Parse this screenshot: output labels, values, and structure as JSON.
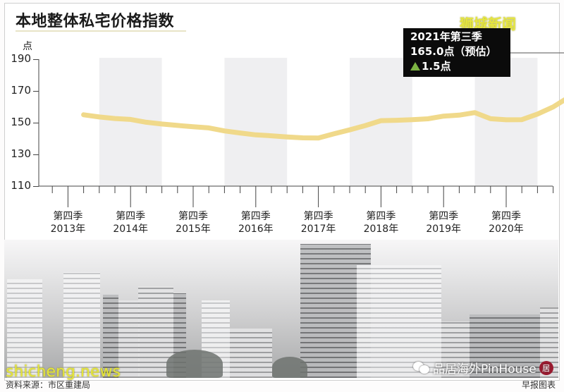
{
  "header": {
    "title": "本地整体私宅价格指数",
    "watermark": "狮城新闻"
  },
  "callout": {
    "line1": "2021年第三季",
    "line2": "165.0点（预估）",
    "change_icon": "up-triangle-icon",
    "change": "1.5点",
    "change_color": "#7cb342"
  },
  "footer": {
    "source": "资料来源：市区重建局",
    "credit": "早报图表",
    "watermark_left": "shicheng.news",
    "watermark_right": "品居海外PinHouse"
  },
  "colors": {
    "line": "#f0d98a",
    "band": "#efeff1",
    "axis": "#444444",
    "callout_bg": "#0b0b0b"
  },
  "chart_data": {
    "type": "line",
    "title": "本地整体私宅价格指数",
    "ylabel": "点",
    "xlabel": "",
    "ylim": [
      110,
      190
    ],
    "yticks": [
      110,
      130,
      150,
      170,
      190
    ],
    "grid": false,
    "legend": null,
    "x_tick_labels": [
      {
        "line1": "第四季",
        "line2": "2013年"
      },
      {
        "line1": "第四季",
        "line2": "2014年"
      },
      {
        "line1": "第四季",
        "line2": "2015年"
      },
      {
        "line1": "第四季",
        "line2": "2016年"
      },
      {
        "line1": "第四季",
        "line2": "2017年"
      },
      {
        "line1": "第四季",
        "line2": "2018年"
      },
      {
        "line1": "第四季",
        "line2": "2019年"
      },
      {
        "line1": "第四季",
        "line2": "2020年"
      }
    ],
    "shaded_bands": [
      [
        "2013Q4",
        "2014Q4"
      ],
      [
        "2015Q4",
        "2016Q4"
      ],
      [
        "2017Q4",
        "2018Q4"
      ],
      [
        "2019Q4",
        "2020Q4"
      ]
    ],
    "x": [
      "2013Q3",
      "2013Q4",
      "2014Q1",
      "2014Q2",
      "2014Q3",
      "2014Q4",
      "2015Q1",
      "2015Q2",
      "2015Q3",
      "2015Q4",
      "2016Q1",
      "2016Q2",
      "2016Q3",
      "2016Q4",
      "2017Q1",
      "2017Q2",
      "2017Q3",
      "2017Q4",
      "2018Q1",
      "2018Q2",
      "2018Q3",
      "2018Q4",
      "2019Q1",
      "2019Q2",
      "2019Q3",
      "2019Q4",
      "2020Q1",
      "2020Q2",
      "2020Q3",
      "2020Q4",
      "2021Q1",
      "2021Q2",
      "2021Q3"
    ],
    "series": [
      {
        "name": "私宅价格指数",
        "values": [
          155.0,
          153.5,
          152.4,
          151.7,
          149.8,
          148.6,
          147.6,
          146.7,
          145.8,
          143.8,
          142.4,
          141.1,
          140.4,
          139.6,
          138.9,
          138.7,
          141.2,
          143.6,
          146.2,
          149.2,
          149.3,
          149.6,
          150.0,
          151.6,
          152.1,
          153.6,
          149.6,
          148.8,
          148.8,
          152.2,
          156.6,
          162.6,
          165.0
        ]
      }
    ],
    "annotations": [
      {
        "x": "2021Q3",
        "text": "2021年第三季 165.0点（预估） ▲1.5点"
      }
    ]
  }
}
